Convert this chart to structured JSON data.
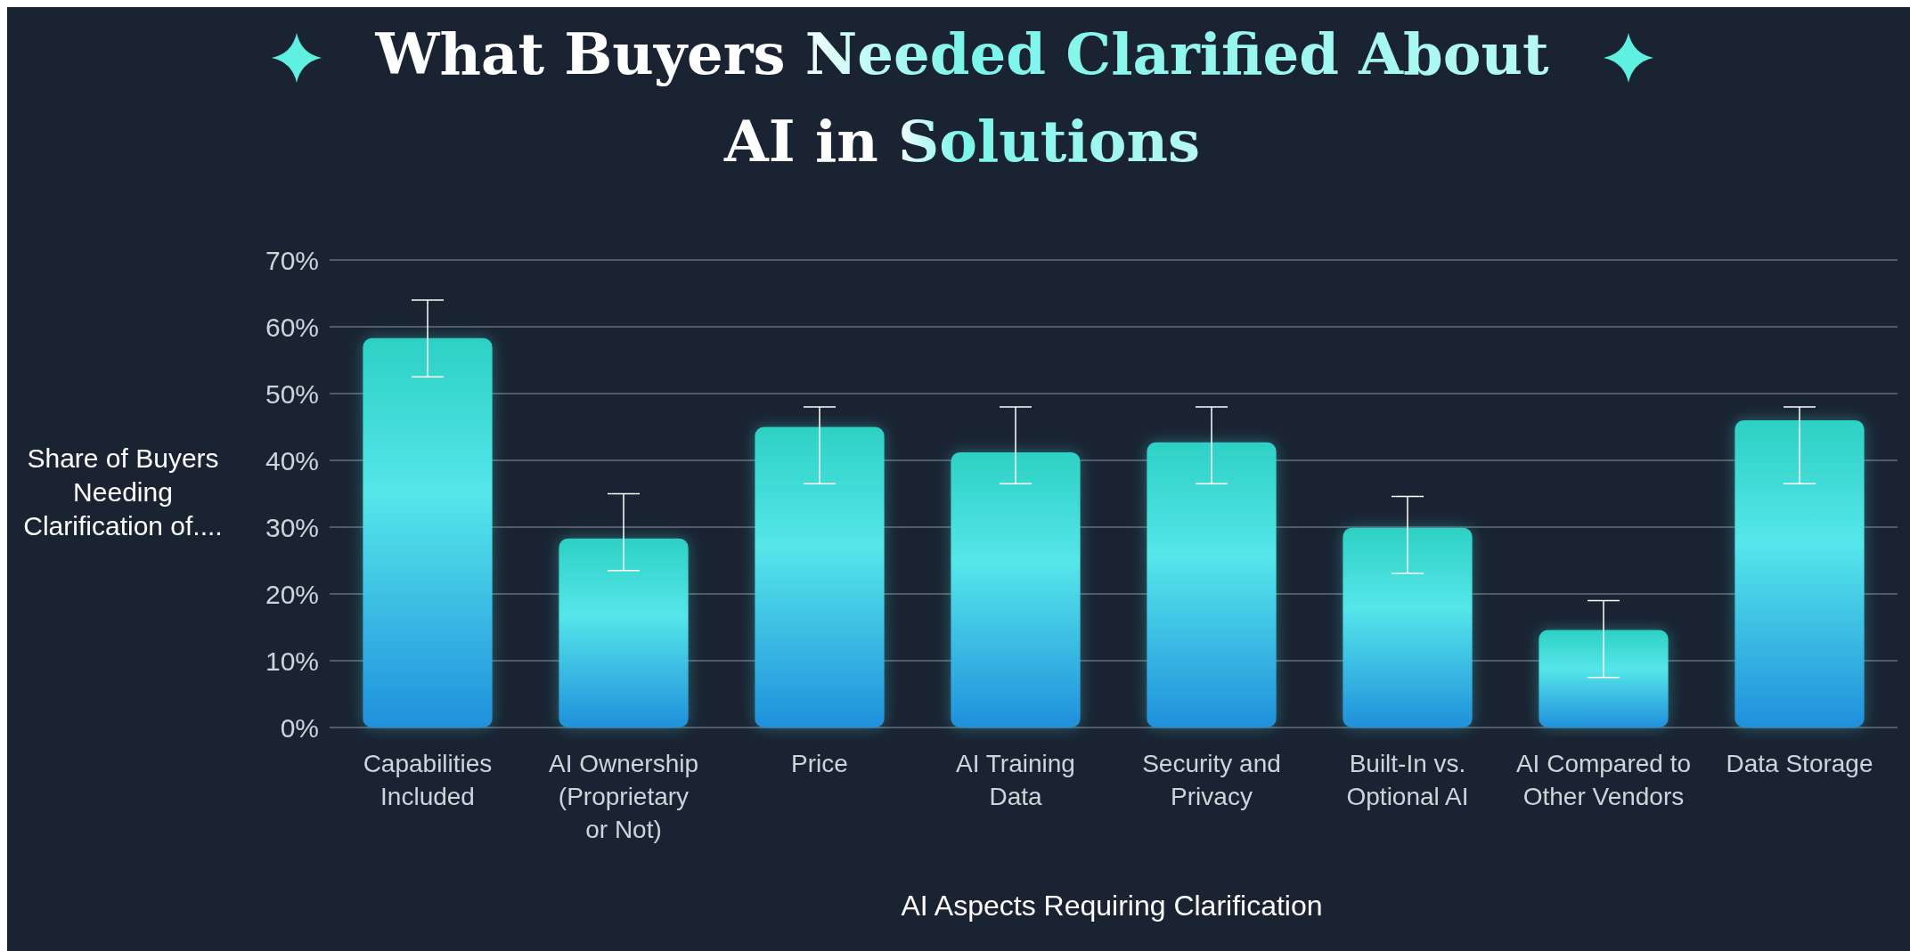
{
  "chart_data": {
    "type": "bar",
    "title": "What Buyers Needed Clarified About AI in Solutions",
    "xlabel": "AI Aspects Requiring Clarification",
    "ylabel": "Share of Buyers Needing Clarification of....",
    "categories": [
      "Capabilities Included",
      "AI Ownership (Proprietary or Not)",
      "Price",
      "AI Training Data",
      "Security and Privacy",
      "Built-In vs. Optional AI",
      "AI Compared to Other Vendors",
      "Data Storage"
    ],
    "values": [
      58.3,
      28.3,
      45,
      41.2,
      42.7,
      29.9,
      14.6,
      46
    ],
    "errors": [
      [
        52.5,
        64
      ],
      [
        23.5,
        35
      ],
      [
        36.5,
        48
      ],
      [
        36.5,
        48
      ],
      [
        36.5,
        48
      ],
      [
        23.1,
        34.6
      ],
      [
        7.5,
        19
      ],
      [
        36.5,
        48
      ]
    ],
    "color": "#55e6ea",
    "ylim": [
      0,
      70
    ],
    "yticks": [
      {
        "value": 0,
        "label": "0%"
      },
      {
        "value": 10,
        "label": "10%"
      },
      {
        "value": 20,
        "label": "20%"
      },
      {
        "value": 30,
        "label": "30%"
      },
      {
        "value": 40,
        "label": "40%"
      },
      {
        "value": 50,
        "label": "50%"
      },
      {
        "value": 60,
        "label": "60%"
      },
      {
        "value": 70,
        "label": "70%"
      }
    ],
    "grid": "y"
  }
}
